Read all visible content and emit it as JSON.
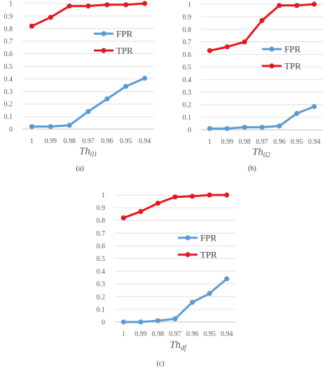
{
  "figure": {
    "panels": [
      {
        "caption": "(a)",
        "xlabel_main": "Th",
        "xlabel_sub": "01"
      },
      {
        "caption": "(b)",
        "xlabel_main": "Th",
        "xlabel_sub": "02"
      },
      {
        "caption": "(c)",
        "xlabel_main": "Th",
        "xlabel_sub": "df"
      }
    ]
  },
  "colors": {
    "FPR": "#5b9bd5",
    "TPR": "#e31a1c",
    "grid": "#d9d9d9",
    "axis": "#bfbfbf"
  },
  "chart_data": [
    {
      "type": "line",
      "categories": [
        "1",
        "0.99",
        "0.98",
        "0.97",
        "0.96",
        "0.95",
        "0.94"
      ],
      "series": [
        {
          "name": "FPR",
          "values": [
            0.02,
            0.02,
            0.03,
            0.14,
            0.24,
            0.34,
            0.405
          ]
        },
        {
          "name": "TPR",
          "values": [
            0.82,
            0.89,
            0.98,
            0.98,
            0.99,
            0.99,
            1.0
          ]
        }
      ],
      "yticks": [
        "0",
        "0.1",
        "0.2",
        "0.3",
        "0.4",
        "0.5",
        "0.6",
        "0.7",
        "0.8",
        "0.9",
        "1"
      ],
      "ylim": [
        0,
        1
      ],
      "grid": true,
      "legend": "right"
    },
    {
      "type": "line",
      "categories": [
        "1",
        "0.99",
        "0.98",
        "0.97",
        "0.96",
        "0.95",
        "0.94"
      ],
      "series": [
        {
          "name": "FPR",
          "values": [
            0.01,
            0.01,
            0.02,
            0.02,
            0.03,
            0.13,
            0.185
          ]
        },
        {
          "name": "TPR",
          "values": [
            0.63,
            0.66,
            0.7,
            0.87,
            0.99,
            0.99,
            1.0
          ]
        }
      ],
      "yticks": [
        "0",
        "0.1",
        "0.2",
        "0.3",
        "0.4",
        "0.5",
        "0.6",
        "0.7",
        "0.8",
        "0.9",
        "1"
      ],
      "ylim": [
        0,
        1
      ],
      "grid": true,
      "legend": "right"
    },
    {
      "type": "line",
      "categories": [
        "1",
        "0.99",
        "0.98",
        "0.97",
        "0.96",
        "0.95",
        "0.94"
      ],
      "series": [
        {
          "name": "FPR",
          "values": [
            0.0,
            0.0,
            0.01,
            0.025,
            0.155,
            0.225,
            0.34
          ]
        },
        {
          "name": "TPR",
          "values": [
            0.82,
            0.87,
            0.935,
            0.985,
            0.99,
            1.0,
            1.0
          ]
        }
      ],
      "yticks": [
        "0",
        "0.1",
        "0.2",
        "0.3",
        "0.4",
        "0.5",
        "0.6",
        "0.7",
        "0.8",
        "0.9",
        "1"
      ],
      "ylim": [
        0,
        1
      ],
      "grid": true,
      "legend": "right"
    }
  ]
}
